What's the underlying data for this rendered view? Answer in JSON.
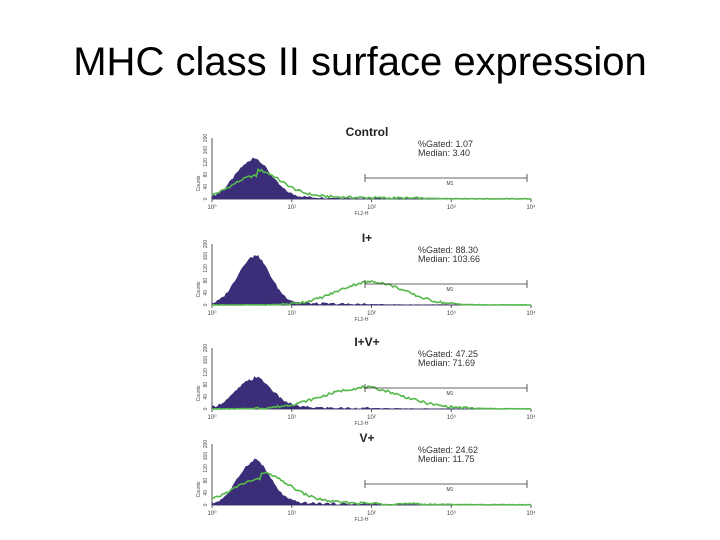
{
  "slide": {
    "title": "MHC class II surface expression"
  },
  "colors": {
    "filled_histogram": "#3b2d77",
    "line_histogram": "#55b84a",
    "axis": "#555555"
  },
  "chart_data": [
    {
      "type": "area",
      "title": "Control",
      "xlabel": "FL2-H",
      "ylabel": "Counts",
      "xscale": "log",
      "xlim": [
        1,
        10000
      ],
      "x_tick_labels": [
        "10⁰",
        "10¹",
        "10²",
        "10³",
        "10⁴"
      ],
      "y_tick_labels": [
        "0",
        "40",
        "80",
        "120",
        "160",
        "200"
      ],
      "gate_label": "M1",
      "stats": [
        "%Gated: 1.07",
        "Median: 3.40"
      ],
      "series": [
        {
          "style": "filled",
          "peak_x": 3.2,
          "spread_decades": 0.22,
          "peak_height": 0.62,
          "tail_height": 0.06
        },
        {
          "style": "line",
          "peak_x": 3.6,
          "spread_decades": 0.3,
          "peak_height": 0.38,
          "tail_height": 0.1
        }
      ]
    },
    {
      "type": "area",
      "title": "I+",
      "xlabel": "FL2-H",
      "ylabel": "Counts",
      "xscale": "log",
      "xlim": [
        1,
        10000
      ],
      "x_tick_labels": [
        "10⁰",
        "10¹",
        "10²",
        "10³",
        "10⁴"
      ],
      "y_tick_labels": [
        "0",
        "40",
        "80",
        "120",
        "160",
        "200"
      ],
      "gate_label": "M1",
      "stats": [
        "%Gated: 88.30",
        "Median: 103.66"
      ],
      "series": [
        {
          "style": "filled",
          "peak_x": 3.3,
          "spread_decades": 0.2,
          "peak_height": 0.78,
          "tail_height": 0.05
        },
        {
          "style": "line",
          "peak_x": 100,
          "spread_decades": 0.42,
          "peak_height": 0.38,
          "tail_height": 0.0
        }
      ]
    },
    {
      "type": "area",
      "title": "I+V+",
      "xlabel": "FL2-H",
      "ylabel": "Counts",
      "xscale": "log",
      "xlim": [
        1,
        10000
      ],
      "x_tick_labels": [
        "10⁰",
        "10¹",
        "10²",
        "10³",
        "10⁴"
      ],
      "y_tick_labels": [
        "0",
        "40",
        "80",
        "120",
        "160",
        "200"
      ],
      "gate_label": "M1",
      "stats": [
        "%Gated: 47.25",
        "Median: 71.69"
      ],
      "series": [
        {
          "style": "filled",
          "peak_x": 3.3,
          "spread_decades": 0.22,
          "peak_height": 0.48,
          "tail_height": 0.05
        },
        {
          "style": "line",
          "peak_x": 75,
          "spread_decades": 0.5,
          "peak_height": 0.34,
          "tail_height": 0.02
        }
      ]
    },
    {
      "type": "area",
      "title": "V+",
      "xlabel": "FL2-H",
      "ylabel": "Counts",
      "xscale": "log",
      "xlim": [
        1,
        10000
      ],
      "x_tick_labels": [
        "10⁰",
        "10¹",
        "10²",
        "10³",
        "10⁴"
      ],
      "y_tick_labels": [
        "0",
        "40",
        "80",
        "120",
        "160",
        "200"
      ],
      "gate_label": "M1",
      "stats": [
        "%Gated: 24.62",
        "Median: 11.75"
      ],
      "series": [
        {
          "style": "filled",
          "peak_x": 3.3,
          "spread_decades": 0.2,
          "peak_height": 0.7,
          "tail_height": 0.06
        },
        {
          "style": "line",
          "peak_x": 4.0,
          "spread_decades": 0.35,
          "peak_height": 0.42,
          "tail_height": 0.12
        }
      ]
    }
  ]
}
